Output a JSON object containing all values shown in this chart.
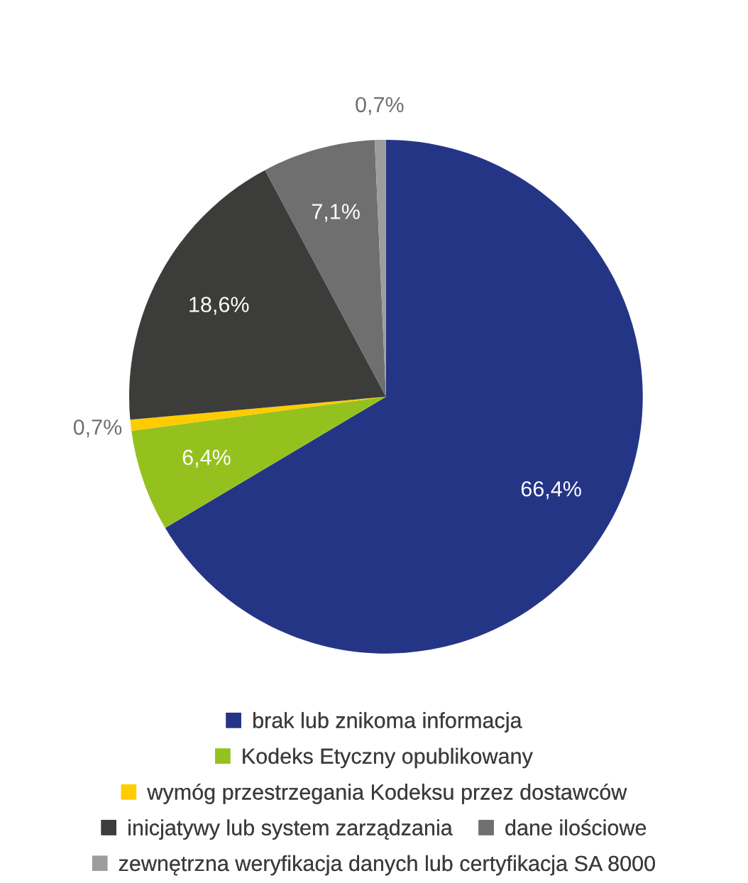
{
  "chart_data": {
    "type": "pie",
    "categories": [
      "brak lub znikoma informacja",
      "Kodeks Etyczny opublikowany",
      "wymóg przestrzegania Kodeksu przez dostawców",
      "inicjatywy lub system zarządzania",
      "dane ilościowe",
      "zewnętrzna weryfikacja danych lub certyfikacja SA 8000"
    ],
    "values": [
      66.4,
      6.4,
      0.7,
      18.6,
      7.1,
      0.7
    ],
    "value_labels": [
      "66,4%",
      "6,4%",
      "0,7%",
      "18,6%",
      "7,1%",
      "0,7%"
    ],
    "colors": [
      "#253586",
      "#95c11f",
      "#ffcc00",
      "#3c3c3b",
      "#706f6f",
      "#9d9d9c"
    ],
    "legend": "bottom"
  }
}
